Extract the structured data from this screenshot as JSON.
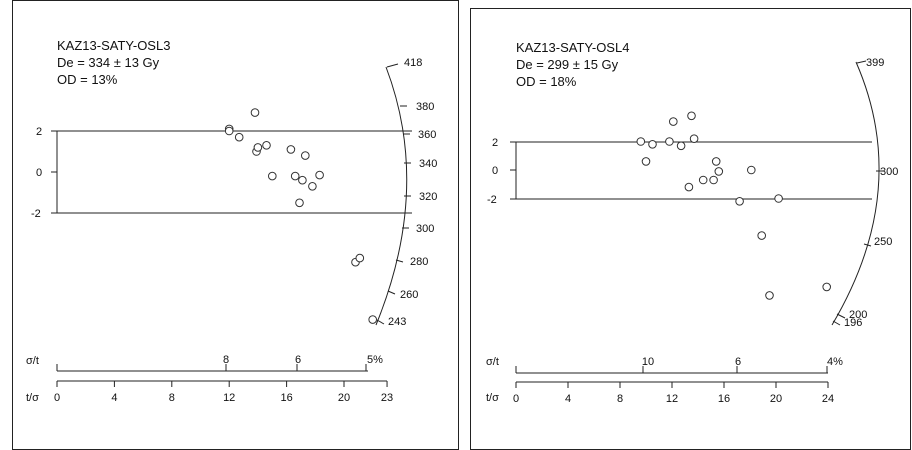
{
  "chart_data": [
    {
      "type": "scatter",
      "info": [
        "KAZ13-SATY-OSL3",
        "De = 334 ± 13 Gy",
        "OD = 13%"
      ],
      "y_axis_ticks": [
        "2",
        "0",
        "-2"
      ],
      "x_axis_label": "t/σ",
      "x_ticks": [
        0,
        4,
        8,
        12,
        16,
        20,
        23
      ],
      "sigma_axis_label": "σ/t",
      "sigma_ticks": [
        "8",
        "6",
        "5%"
      ],
      "radial_ticks": [
        "418",
        "380",
        "360",
        "340",
        "320",
        "300",
        "280",
        "260",
        "243"
      ],
      "points": [
        {
          "x": 12.0,
          "y": 2.1
        },
        {
          "x": 12.0,
          "y": 2.0
        },
        {
          "x": 12.7,
          "y": 1.7
        },
        {
          "x": 13.8,
          "y": 2.9
        },
        {
          "x": 13.9,
          "y": 1.0
        },
        {
          "x": 14.0,
          "y": 1.2
        },
        {
          "x": 14.6,
          "y": 1.3
        },
        {
          "x": 15.0,
          "y": -0.2
        },
        {
          "x": 16.3,
          "y": 1.1
        },
        {
          "x": 16.6,
          "y": -0.2
        },
        {
          "x": 16.9,
          "y": -1.5
        },
        {
          "x": 17.1,
          "y": -0.4
        },
        {
          "x": 17.3,
          "y": 0.8
        },
        {
          "x": 17.8,
          "y": -0.7
        },
        {
          "x": 18.3,
          "y": -0.15
        },
        {
          "x": 20.8,
          "y": -4.4
        },
        {
          "x": 21.1,
          "y": -4.2
        },
        {
          "x": 22.0,
          "y": -7.2
        }
      ]
    },
    {
      "type": "scatter",
      "info": [
        "KAZ13-SATY-OSL4",
        "De = 299 ± 15 Gy",
        "OD = 18%"
      ],
      "y_axis_ticks": [
        "2",
        "0",
        "-2"
      ],
      "x_axis_label": "t/σ",
      "x_ticks": [
        0,
        4,
        8,
        12,
        16,
        20,
        24
      ],
      "sigma_axis_label": "σ/t",
      "sigma_ticks": [
        "10",
        "6",
        "4%"
      ],
      "radial_ticks": [
        "399",
        "300",
        "250",
        "200",
        "196"
      ],
      "points": [
        {
          "x": 9.6,
          "y": 2.0
        },
        {
          "x": 10.0,
          "y": 0.6
        },
        {
          "x": 10.5,
          "y": 1.8
        },
        {
          "x": 11.8,
          "y": 2.0
        },
        {
          "x": 12.1,
          "y": 3.4
        },
        {
          "x": 12.7,
          "y": 1.7
        },
        {
          "x": 13.3,
          "y": -1.2
        },
        {
          "x": 13.5,
          "y": 3.8
        },
        {
          "x": 13.7,
          "y": 2.2
        },
        {
          "x": 14.4,
          "y": -0.7
        },
        {
          "x": 15.2,
          "y": -0.7
        },
        {
          "x": 15.4,
          "y": 0.6
        },
        {
          "x": 15.6,
          "y": -0.1
        },
        {
          "x": 17.2,
          "y": -2.2
        },
        {
          "x": 18.1,
          "y": 0.0
        },
        {
          "x": 18.9,
          "y": -4.6
        },
        {
          "x": 19.5,
          "y": -8.8
        },
        {
          "x": 20.2,
          "y": -2.0
        },
        {
          "x": 23.9,
          "y": -8.2
        }
      ]
    }
  ]
}
